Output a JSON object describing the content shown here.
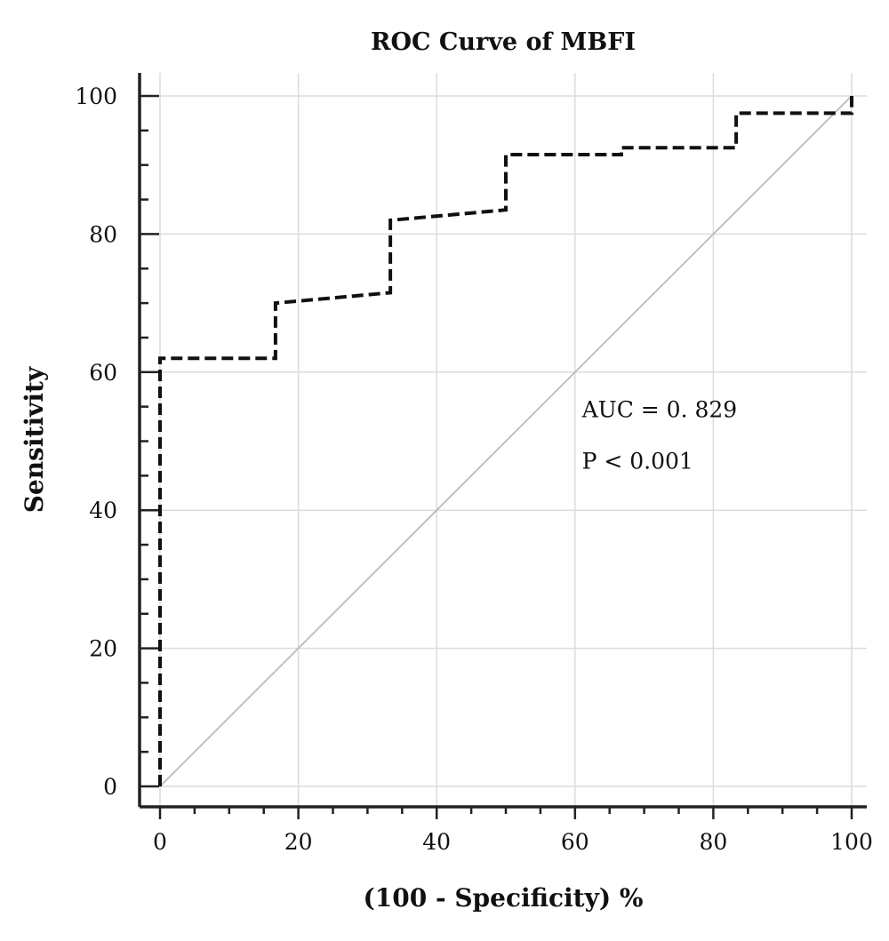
{
  "chart_data": {
    "type": "line",
    "title": "ROC Curve of MBFI",
    "xlabel": "(100 - Specificity) %",
    "ylabel": "Sensitivity",
    "xlim": [
      0,
      100
    ],
    "ylim": [
      0,
      100
    ],
    "xticks": [
      0,
      20,
      40,
      60,
      80,
      100
    ],
    "yticks": [
      0,
      20,
      40,
      60,
      80,
      100
    ],
    "grid": true,
    "series": [
      {
        "style": "dashed",
        "color": "#111111",
        "x": [
          0,
          0,
          16.7,
          16.7,
          33.3,
          33.3,
          50,
          50,
          66.7,
          66.7,
          83.3,
          83.3,
          100,
          100
        ],
        "y": [
          0,
          62,
          62,
          70,
          71.5,
          82,
          83.5,
          91.5,
          91.5,
          92.5,
          92.5,
          97.5,
          97.5,
          100
        ]
      },
      {
        "style": "solid",
        "color": "#bbbbbb",
        "x": [
          0,
          100
        ],
        "y": [
          0,
          100
        ]
      }
    ],
    "annotations": [
      {
        "text": "AUC = 0. 829",
        "x": 61,
        "y": 53.5
      },
      {
        "text": "P < 0.001",
        "x": 61,
        "y": 46
      }
    ]
  }
}
